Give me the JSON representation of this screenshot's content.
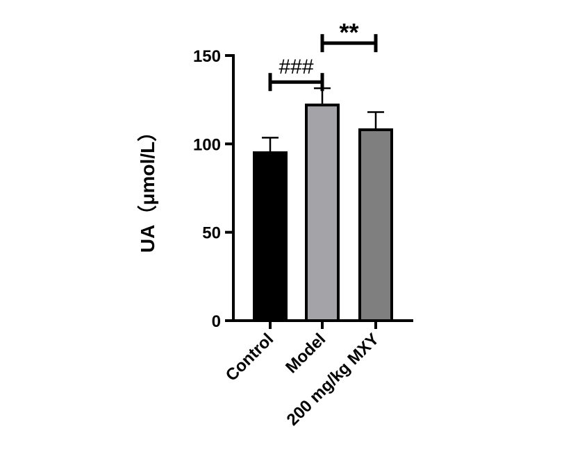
{
  "chart_data": {
    "type": "bar",
    "categories": [
      "Control",
      "Model",
      "200 mg/kg MXY"
    ],
    "values": [
      95,
      122,
      108
    ],
    "errors": [
      8.5,
      9.5,
      10
    ],
    "colors": [
      "#000000",
      "#a3a3a8",
      "#7f7f7f"
    ],
    "ylabel": "UA（μmol/L）",
    "xlabel": "",
    "ylim": [
      0,
      150
    ],
    "yticks": [
      0,
      50,
      100,
      150
    ],
    "grid": false,
    "annotations": [
      {
        "from": 0,
        "to": 1,
        "level": 135,
        "label": "###"
      },
      {
        "from": 1,
        "to": 2,
        "level": 157,
        "label": "**"
      }
    ]
  }
}
